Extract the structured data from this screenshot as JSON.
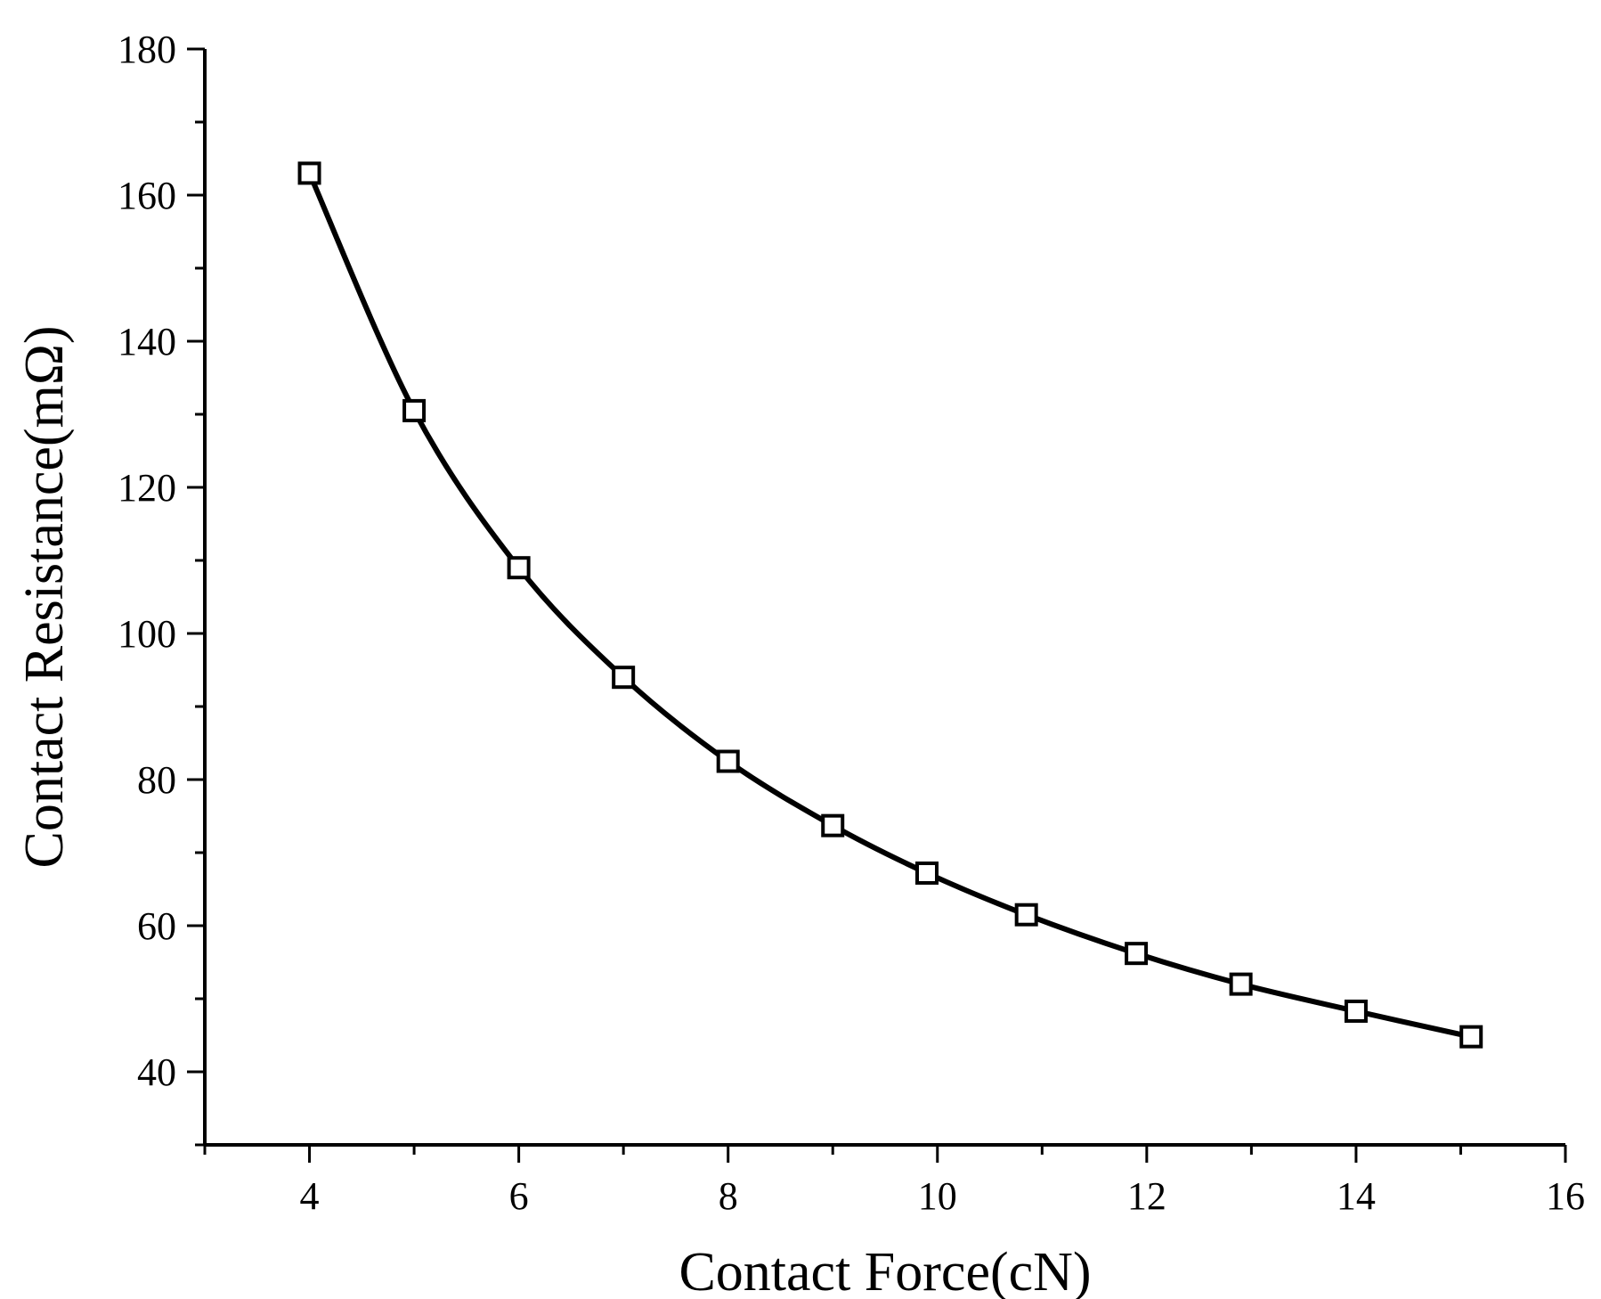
{
  "chart_data": {
    "type": "line",
    "title": "",
    "xlabel": "Contact Force(cN)",
    "ylabel": "Contact Resistance(mΩ)",
    "xlim": [
      3,
      16
    ],
    "ylim": [
      30,
      180
    ],
    "x_ticks": [
      4,
      6,
      8,
      10,
      12,
      14,
      16
    ],
    "y_ticks": [
      40,
      60,
      80,
      100,
      120,
      140,
      160,
      180
    ],
    "grid": false,
    "legend": "none",
    "marker": "open-square",
    "line_color": "#000000",
    "series": [
      {
        "x": [
          4.0,
          5.0,
          6.0,
          7.0,
          8.0,
          9.0,
          9.9,
          10.85,
          11.9,
          12.9,
          14.0,
          15.1
        ],
        "y": [
          163.0,
          130.5,
          109.0,
          94.0,
          82.5,
          73.7,
          67.2,
          61.5,
          56.2,
          52.0,
          48.3,
          44.8
        ]
      }
    ]
  }
}
